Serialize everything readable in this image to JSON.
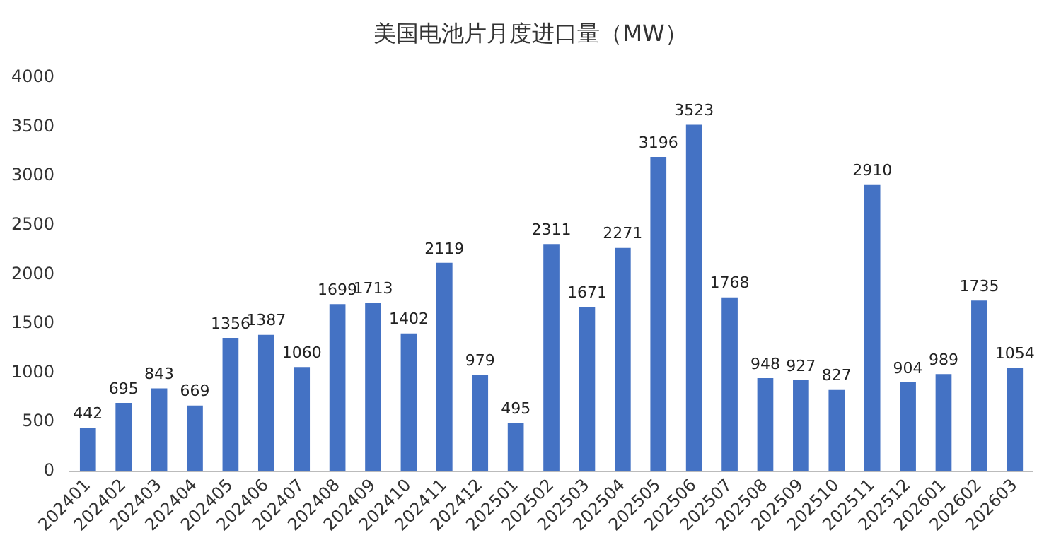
{
  "chart_data": {
    "type": "bar",
    "title": "美国电池片月度进口量（MW）",
    "categories": [
      "202401",
      "202402",
      "202403",
      "202404",
      "202405",
      "202406",
      "202407",
      "202408",
      "202409",
      "202410",
      "202411",
      "202412",
      "202501",
      "202502",
      "202503",
      "202504",
      "202505",
      "202506",
      "202507",
      "202508",
      "202509",
      "202510",
      "202511",
      "202512",
      "202601",
      "202602",
      "202603"
    ],
    "values": [
      442,
      695,
      843,
      669,
      1356,
      1387,
      1060,
      1699,
      1713,
      1402,
      2119,
      979,
      495,
      2311,
      1671,
      2271,
      3196,
      3523,
      1768,
      948,
      927,
      827,
      2910,
      904,
      989,
      1735,
      1054
    ],
    "color": "#4472c4",
    "ylim": [
      0,
      4000
    ],
    "yticks": [
      0,
      500,
      1000,
      1500,
      2000,
      2500,
      3000,
      3500,
      4000
    ],
    "grid": false,
    "legend": false,
    "data_labels": true
  }
}
